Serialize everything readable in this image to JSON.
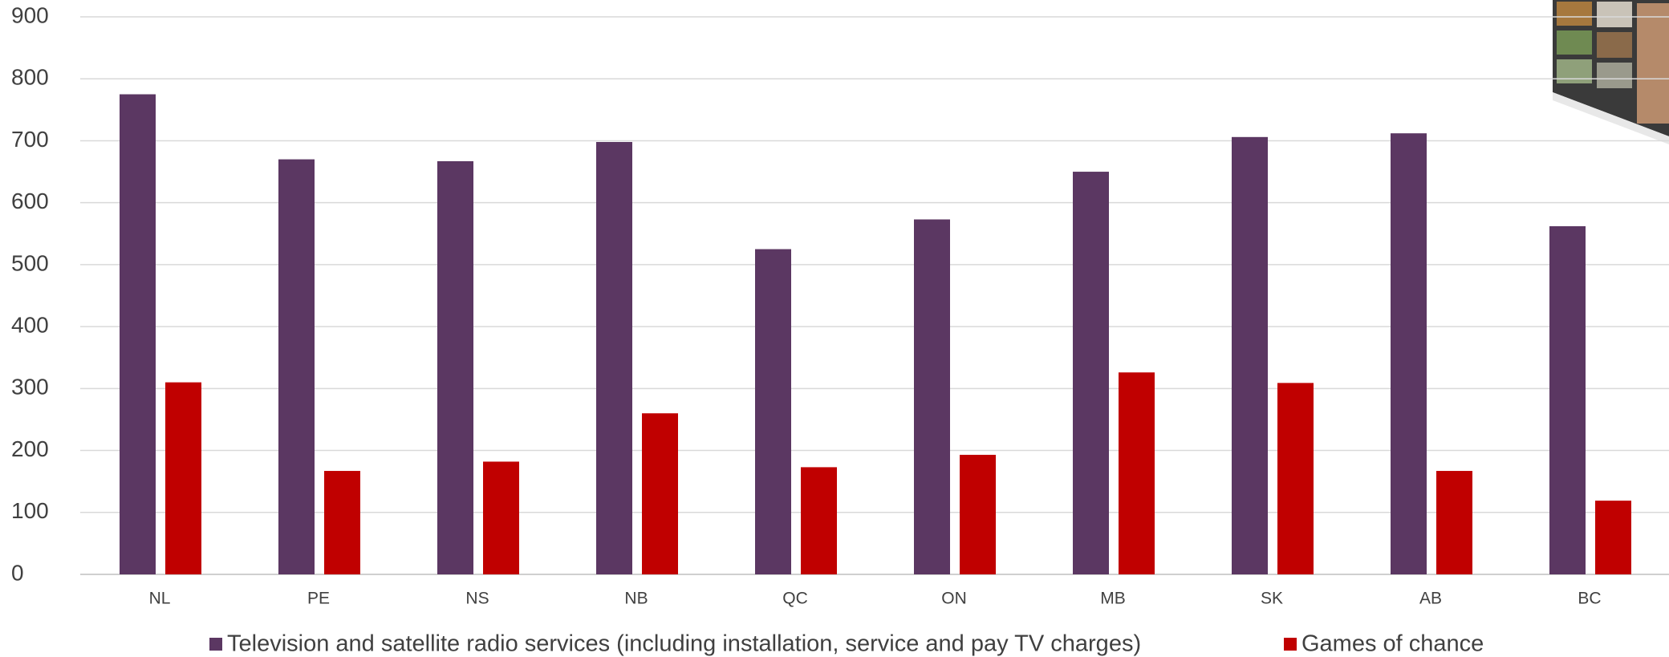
{
  "chart_data": {
    "type": "bar",
    "categories": [
      "NL",
      "PE",
      "NS",
      "NB",
      "QC",
      "ON",
      "MB",
      "SK",
      "AB",
      "BC"
    ],
    "series": [
      {
        "name": "Television and satellite radio services (including installation, service and pay TV charges)",
        "color": "#5b3762",
        "values": [
          775,
          670,
          667,
          698,
          525,
          573,
          650,
          706,
          712,
          562
        ]
      },
      {
        "name": "Games of chance",
        "color": "#c00000",
        "values": [
          310,
          167,
          182,
          260,
          173,
          193,
          326,
          309,
          167,
          119
        ]
      }
    ],
    "ylim": [
      0,
      900
    ],
    "yticks": [
      0,
      100,
      200,
      300,
      400,
      500,
      600,
      700,
      800,
      900
    ],
    "grid": true
  }
}
